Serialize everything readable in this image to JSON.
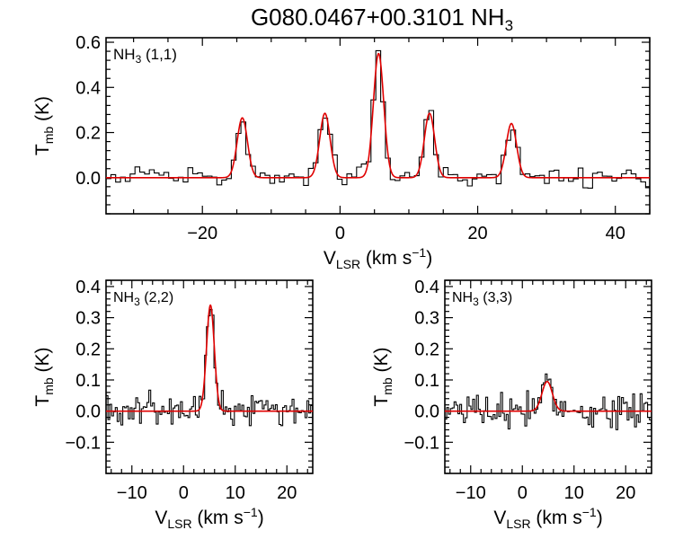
{
  "title": {
    "main": "G080.0467+00.3101 NH",
    "sub": "3"
  },
  "chart_data": [
    {
      "type": "line",
      "id": "p11",
      "label": {
        "mol": "NH",
        "sub": "3",
        "rest": " (1,1)"
      },
      "xlabel": {
        "main": "V",
        "sub": "LSR",
        "unit": " (km s",
        "sup": "−1",
        "end": ")"
      },
      "ylabel": {
        "main": "T",
        "sub": "mb",
        "unit": " (K)"
      },
      "xlim": [
        -34,
        45
      ],
      "ylim": [
        -0.16,
        0.62
      ],
      "xticks": [
        {
          "v": -20,
          "label": "−20"
        },
        {
          "v": 0,
          "label": "0"
        },
        {
          "v": 20,
          "label": "20"
        },
        {
          "v": 40,
          "label": "40"
        }
      ],
      "yticks": [
        {
          "v": 0.0,
          "label": "0.0"
        },
        {
          "v": 0.2,
          "label": "0.2"
        },
        {
          "v": 0.4,
          "label": "0.4"
        },
        {
          "v": 0.6,
          "label": "0.6"
        }
      ],
      "components": [
        {
          "center": -14.2,
          "amp": 0.265,
          "sigma": 0.75
        },
        {
          "center": -2.2,
          "amp": 0.285,
          "sigma": 0.75
        },
        {
          "center": 5.6,
          "amp": 0.55,
          "sigma": 0.75
        },
        {
          "center": 13.0,
          "amp": 0.285,
          "sigma": 0.75
        },
        {
          "center": 24.9,
          "amp": 0.24,
          "sigma": 0.75
        }
      ],
      "noise_rms": 0.022,
      "channel_width": 0.7,
      "series": [
        {
          "name": "observed spectrum",
          "color": "#000000"
        },
        {
          "name": "hyperfine fit",
          "color": "#e00000"
        }
      ]
    },
    {
      "type": "line",
      "id": "p22",
      "label": {
        "mol": "NH",
        "sub": "3",
        "rest": " (2,2)"
      },
      "xlabel": {
        "main": "V",
        "sub": "LSR",
        "unit": " (km s",
        "sup": "−1",
        "end": ")"
      },
      "ylabel": {
        "main": "T",
        "sub": "mb",
        "unit": " (K)"
      },
      "xlim": [
        -15,
        25
      ],
      "ylim": [
        -0.2,
        0.42
      ],
      "xticks": [
        {
          "v": -10,
          "label": "−10"
        },
        {
          "v": 0,
          "label": "0"
        },
        {
          "v": 10,
          "label": "10"
        },
        {
          "v": 20,
          "label": "20"
        }
      ],
      "yticks": [
        {
          "v": -0.1,
          "label": "−0.1"
        },
        {
          "v": 0.0,
          "label": "0.0"
        },
        {
          "v": 0.1,
          "label": "0.1"
        },
        {
          "v": 0.2,
          "label": "0.2"
        },
        {
          "v": 0.3,
          "label": "0.3"
        },
        {
          "v": 0.4,
          "label": "0.4"
        }
      ],
      "components": [
        {
          "center": 5.2,
          "amp": 0.34,
          "sigma": 0.75
        }
      ],
      "noise_rms": 0.025,
      "channel_width": 0.36,
      "series": [
        {
          "name": "observed spectrum",
          "color": "#000000"
        },
        {
          "name": "gaussian fit",
          "color": "#e00000"
        }
      ]
    },
    {
      "type": "line",
      "id": "p33",
      "label": {
        "mol": "NH",
        "sub": "3",
        "rest": " (3,3)"
      },
      "xlabel": {
        "main": "V",
        "sub": "LSR",
        "unit": " (km s",
        "sup": "−1",
        "end": ")"
      },
      "ylabel": {
        "main": "T",
        "sub": "mb",
        "unit": " (K)"
      },
      "xlim": [
        -15,
        25
      ],
      "ylim": [
        -0.2,
        0.42
      ],
      "xticks": [
        {
          "v": -10,
          "label": "−10"
        },
        {
          "v": 0,
          "label": "0"
        },
        {
          "v": 10,
          "label": "10"
        },
        {
          "v": 20,
          "label": "20"
        }
      ],
      "yticks": [
        {
          "v": -0.1,
          "label": "−0.1"
        },
        {
          "v": 0.0,
          "label": "0.0"
        },
        {
          "v": 0.1,
          "label": "0.1"
        },
        {
          "v": 0.2,
          "label": "0.2"
        },
        {
          "v": 0.3,
          "label": "0.3"
        },
        {
          "v": 0.4,
          "label": "0.4"
        }
      ],
      "components": [
        {
          "center": 4.8,
          "amp": 0.095,
          "sigma": 1.0
        }
      ],
      "noise_rms": 0.025,
      "channel_width": 0.36,
      "series": [
        {
          "name": "observed spectrum",
          "color": "#000000"
        },
        {
          "name": "gaussian fit",
          "color": "#e00000"
        }
      ]
    }
  ]
}
